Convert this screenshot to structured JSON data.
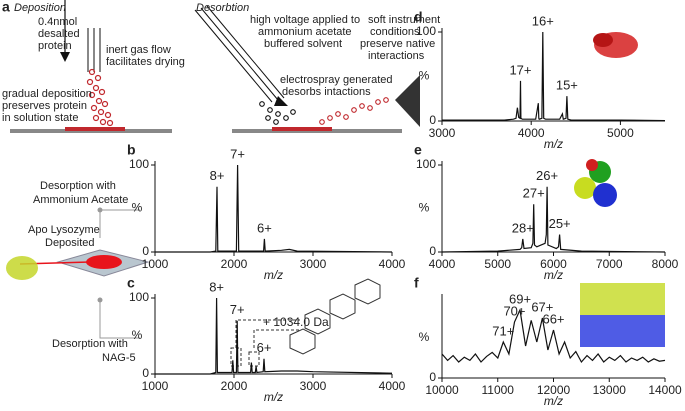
{
  "figure": {
    "panel_a": {
      "letter": "a",
      "deposition": {
        "title": "Deposition",
        "protein": [
          "0.4nmol",
          "desalted",
          "protein"
        ],
        "gas": [
          "inert gas flow",
          "facilitates drying"
        ],
        "gradual": [
          "gradual deposition",
          "preserves protein",
          "in solution state"
        ]
      },
      "desorption": {
        "title": "Desorbtion",
        "voltage": [
          "high voltage applied to",
          "ammonium acetate",
          "buffered solvent"
        ],
        "soft": [
          "soft instrument",
          "conditions",
          "preserve native",
          "interactions"
        ],
        "spray": [
          "electrospray generated",
          "desorbs intactions"
        ]
      }
    },
    "left_labels": {
      "top": [
        "Desorption with",
        "Ammonium Acetate"
      ],
      "middle": [
        "Apo Lysozyme",
        "Deposited"
      ],
      "bottom": [
        "Desorption with",
        "NAG-5"
      ]
    }
  },
  "chart_data": [
    {
      "type": "line",
      "panel": "d",
      "xlabel": "m/z",
      "ylabel": "%",
      "color": "#111",
      "x": [
        3000,
        3700,
        3800,
        3830,
        3845,
        3860,
        3875,
        3880,
        3885,
        3900,
        4050,
        4080,
        4085,
        4090,
        4120,
        4130,
        4140,
        4160,
        4320,
        4350,
        4360,
        4390,
        4400,
        4410,
        4450,
        5000,
        5500
      ],
      "values": [
        1,
        1,
        2,
        3,
        15,
        4,
        3,
        45,
        3,
        2,
        2,
        20,
        3,
        2,
        3,
        100,
        3,
        2,
        2,
        8,
        2,
        3,
        28,
        2,
        1,
        1,
        0.5
      ],
      "xlim": [
        3000,
        5500
      ],
      "ylim": [
        0,
        100
      ],
      "xticks": [
        3000,
        4000,
        5000
      ],
      "yticks": [
        0,
        100
      ],
      "annotations": [
        {
          "text": "17+",
          "x": 3880
        },
        {
          "text": "16+",
          "x": 4130
        },
        {
          "text": "15+",
          "x": 4400
        }
      ]
    },
    {
      "type": "line",
      "panel": "b",
      "xlabel": "m/z",
      "ylabel": "%",
      "color": "#111",
      "x": [
        1000,
        1700,
        1770,
        1785,
        1795,
        1900,
        2030,
        2045,
        2060,
        2300,
        2375,
        2385,
        2395,
        2600,
        2700,
        2800,
        4000
      ],
      "values": [
        0,
        0,
        1,
        75,
        1,
        1,
        1,
        100,
        1,
        1,
        1,
        15,
        1,
        2,
        3,
        1,
        0
      ],
      "xlim": [
        1000,
        4000
      ],
      "ylim": [
        0,
        100
      ],
      "xticks": [
        1000,
        2000,
        3000,
        4000
      ],
      "yticks": [
        0,
        100
      ],
      "annotations": [
        {
          "text": "8+",
          "x": 1785
        },
        {
          "text": "7+",
          "x": 2045
        },
        {
          "text": "6+",
          "x": 2385
        }
      ]
    },
    {
      "type": "line",
      "panel": "e",
      "xlabel": "m/z",
      "ylabel": "%",
      "color": "#111",
      "x": [
        4000,
        5000,
        5400,
        5430,
        5450,
        5470,
        5600,
        5630,
        5645,
        5660,
        5700,
        5850,
        5870,
        5885,
        5900,
        6050,
        6090,
        6110,
        6130,
        6500,
        8000
      ],
      "values": [
        0,
        1,
        3,
        5,
        15,
        4,
        5,
        10,
        55,
        8,
        6,
        10,
        20,
        75,
        8,
        4,
        6,
        20,
        3,
        1,
        0
      ],
      "xlim": [
        4000,
        8000
      ],
      "ylim": [
        0,
        100
      ],
      "xticks": [
        4000,
        5000,
        6000,
        7000,
        8000
      ],
      "yticks": [
        0,
        100
      ],
      "annotations": [
        {
          "text": "28+",
          "x": 5450
        },
        {
          "text": "27+",
          "x": 5645
        },
        {
          "text": "26+",
          "x": 5885
        },
        {
          "text": "25+",
          "x": 6110
        }
      ]
    },
    {
      "type": "line",
      "panel": "c",
      "xlabel": "m/z",
      "ylabel": "%",
      "color": "#111",
      "note": "+ 1034.0 Da",
      "x": [
        1000,
        1700,
        1770,
        1780,
        1790,
        1900,
        1975,
        1985,
        1995,
        2030,
        2040,
        2050,
        2210,
        2220,
        2230,
        2270,
        2280,
        2290,
        2370,
        2380,
        2390,
        2600,
        2800,
        3000,
        4000
      ],
      "values": [
        0,
        0,
        2,
        100,
        2,
        2,
        2,
        18,
        2,
        2,
        70,
        2,
        2,
        15,
        2,
        2,
        10,
        2,
        3,
        20,
        3,
        4,
        4,
        3,
        1
      ],
      "xlim": [
        1000,
        4000
      ],
      "ylim": [
        0,
        100
      ],
      "xticks": [
        1000,
        2000,
        3000,
        4000
      ],
      "yticks": [
        0,
        100
      ],
      "annotations": [
        {
          "text": "8+",
          "x": 1780
        },
        {
          "text": "7+",
          "x": 2040
        },
        {
          "text": "6+",
          "x": 2380
        }
      ]
    },
    {
      "type": "line",
      "panel": "f",
      "xlabel": "m/z",
      "ylabel": "%",
      "color": "#111",
      "x": [
        10000,
        10100,
        10200,
        10300,
        10400,
        10500,
        10600,
        10700,
        10800,
        10900,
        11000,
        11100,
        11200,
        11300,
        11400,
        11500,
        11600,
        11700,
        11800,
        11900,
        12000,
        12100,
        12200,
        12300,
        12400,
        12500,
        12600,
        12700,
        12800,
        12900,
        13000,
        13100,
        13200,
        13300,
        13400,
        13500,
        13600,
        13700,
        13800,
        13900,
        14000
      ],
      "values": [
        30,
        22,
        28,
        20,
        26,
        22,
        30,
        20,
        27,
        32,
        25,
        45,
        30,
        70,
        85,
        40,
        72,
        45,
        75,
        35,
        60,
        30,
        45,
        25,
        33,
        20,
        28,
        22,
        30,
        20,
        26,
        22,
        28,
        20,
        25,
        22,
        26,
        20,
        24,
        21,
        22
      ],
      "xlim": [
        10000,
        14000
      ],
      "ylim": [
        0,
        100
      ],
      "xticks": [
        10000,
        11000,
        12000,
        13000,
        14000
      ],
      "yticks": [
        0
      ],
      "annotations": [
        {
          "text": "71+",
          "x": 11100
        },
        {
          "text": "70+",
          "x": 11300
        },
        {
          "text": "69+",
          "x": 11400
        },
        {
          "text": "67+",
          "x": 11800
        },
        {
          "text": "66+",
          "x": 12000
        }
      ]
    }
  ]
}
